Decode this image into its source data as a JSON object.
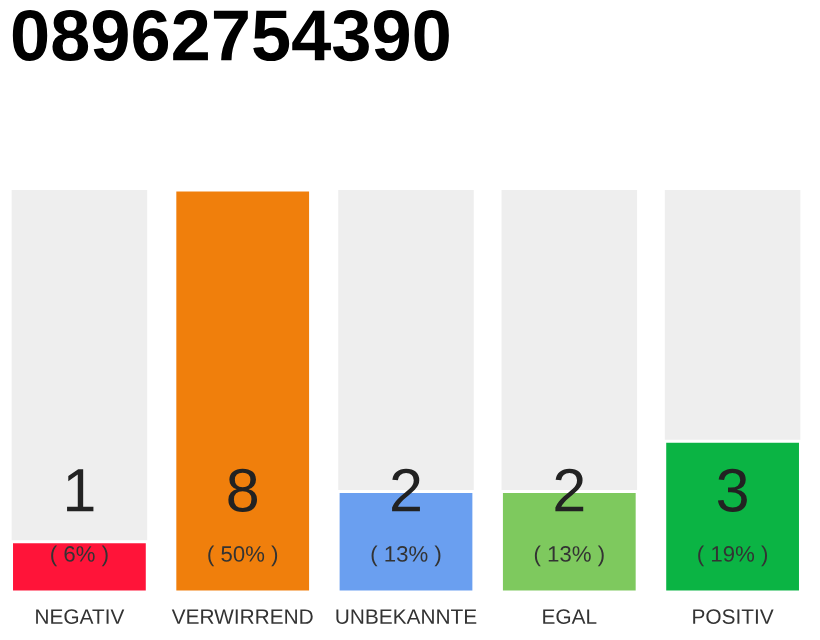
{
  "chart_data": {
    "type": "bar",
    "title": "08962754390",
    "categories": [
      "NEGATIV",
      "VERWIRREND",
      "UNBEKANNTE",
      "EGAL",
      "POSITIV"
    ],
    "values": [
      1,
      8,
      2,
      2,
      3
    ],
    "colors": [
      "#ff1439",
      "#f07f0c",
      "#6a9ff0",
      "#7ec95e",
      "#0bb444"
    ],
    "data_labels": true,
    "annotations": [
      "( 6% )",
      "( 50% )",
      "( 13% )",
      "( 13% )",
      "( 19% )"
    ],
    "grid": false,
    "legend": false
  }
}
